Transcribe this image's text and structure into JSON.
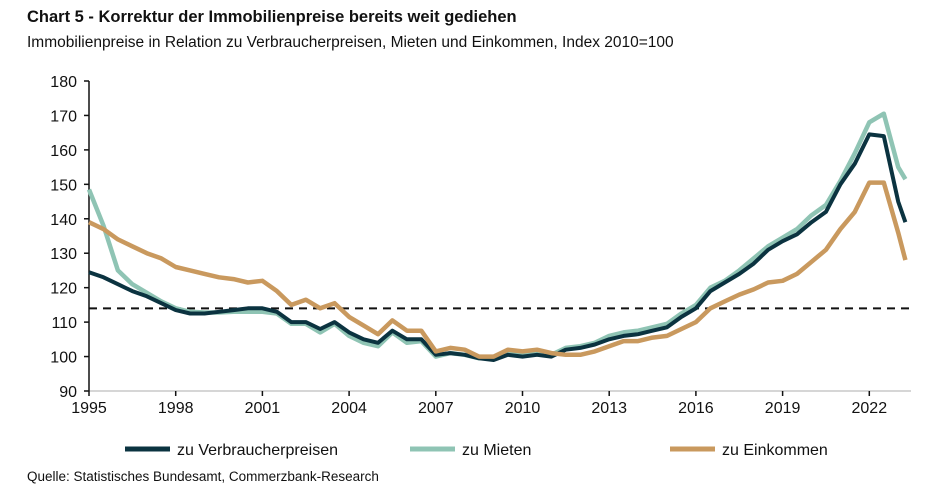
{
  "chart_data": {
    "type": "line",
    "title": "Chart 5 - Korrektur der Immobilienpreise bereits weit gediehen",
    "subtitle": "Immobilienpreise in Relation zu Verbraucherpreisen, Mieten und Einkommen, Index 2010=100",
    "source": "Quelle: Statistisches Bundesamt, Commerzbank-Research",
    "xlabel": "",
    "ylabel": "",
    "xlim": [
      1995,
      2023.25
    ],
    "ylim": [
      90,
      180
    ],
    "xticks": [
      "1995",
      "1998",
      "2001",
      "2004",
      "2007",
      "2010",
      "2013",
      "2016",
      "2019",
      "2022"
    ],
    "yticks": [
      "90",
      "100",
      "110",
      "120",
      "130",
      "140",
      "150",
      "160",
      "170",
      "180"
    ],
    "grid": false,
    "legend": "bottom",
    "reference_line": 114,
    "x": [
      1995,
      1995.5,
      1996,
      1996.5,
      1997,
      1997.5,
      1998,
      1998.5,
      1999,
      1999.5,
      2000,
      2000.5,
      2001,
      2001.5,
      2002,
      2002.5,
      2003,
      2003.5,
      2004,
      2004.5,
      2005,
      2005.5,
      2006,
      2006.5,
      2007,
      2007.5,
      2008,
      2008.5,
      2009,
      2009.5,
      2010,
      2010.5,
      2011,
      2011.5,
      2012,
      2012.5,
      2013,
      2013.5,
      2014,
      2014.5,
      2015,
      2015.5,
      2016,
      2016.5,
      2017,
      2017.5,
      2018,
      2018.5,
      2019,
      2019.5,
      2020,
      2020.5,
      2021,
      2021.5,
      2022,
      2022.5,
      2023,
      2023.25
    ],
    "series": [
      {
        "name": "zu Verbraucherpreisen",
        "color": "#0b3340",
        "values": [
          124.5,
          123,
          121,
          119,
          117.5,
          115.5,
          113.5,
          112.5,
          112.5,
          113,
          113.5,
          114,
          114,
          113,
          110,
          110,
          108,
          110,
          107,
          105,
          104,
          107.5,
          105,
          105,
          100.5,
          101,
          100.5,
          99.5,
          99,
          100.5,
          100,
          100.5,
          100,
          102,
          102.5,
          103.5,
          105,
          106,
          106.5,
          107.5,
          108.5,
          111.5,
          114,
          119,
          121.5,
          124,
          127,
          131,
          133.5,
          135.5,
          139,
          142,
          150,
          156,
          164.5,
          164,
          145,
          139
        ]
      },
      {
        "name": "zu Mieten",
        "color": "#8fc4b4",
        "values": [
          148.5,
          138,
          125,
          121,
          118.5,
          116,
          114,
          113,
          112.8,
          112.8,
          113,
          113,
          113,
          112.5,
          109.5,
          109.5,
          107,
          109.5,
          106,
          104,
          103,
          107,
          104,
          104.5,
          100,
          101,
          100.5,
          99.5,
          99.5,
          101,
          100.5,
          101,
          100.5,
          102.5,
          103,
          104,
          106,
          107,
          107.5,
          108.5,
          109.5,
          112.5,
          115,
          120,
          122,
          125,
          128.5,
          132,
          134.5,
          137,
          141,
          144,
          151,
          159,
          168,
          170.5,
          155,
          151.5
        ]
      },
      {
        "name": "zu Einkommen",
        "color": "#c9995e",
        "values": [
          139,
          137,
          134,
          132,
          130,
          128.5,
          126,
          125,
          124,
          123,
          122.5,
          121.5,
          122,
          119,
          115,
          116.5,
          114,
          115.5,
          111.5,
          109,
          106.5,
          110.5,
          107.5,
          107.5,
          101.5,
          102.5,
          102,
          100,
          100,
          102,
          101.5,
          102,
          101,
          100.5,
          100.5,
          101.5,
          103,
          104.5,
          104.5,
          105.5,
          106,
          108,
          110,
          114,
          116,
          118,
          119.5,
          121.5,
          122,
          124,
          127.5,
          131,
          137,
          142,
          150.5,
          150.5,
          136,
          128
        ]
      }
    ]
  }
}
